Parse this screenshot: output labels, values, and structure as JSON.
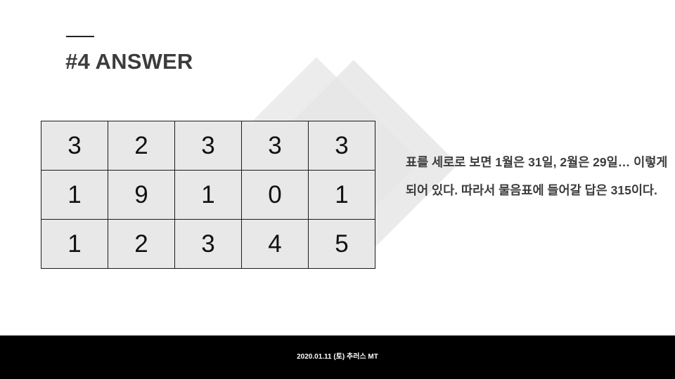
{
  "slide": {
    "title": "#4 ANSWER",
    "grid": [
      [
        "3",
        "2",
        "3",
        "3",
        "3"
      ],
      [
        "1",
        "9",
        "1",
        "0",
        "1"
      ],
      [
        "1",
        "2",
        "3",
        "4",
        "5"
      ]
    ],
    "explanation": "표를 세로로 보면 1월은 31일, 2월은 29일… 이렇게 되어 있다. 따라서 물음표에 들어갈 답은 315이다.",
    "footer": "2020.01.11 (토) 추러스 MT"
  },
  "colors": {
    "title": "#3c3c3c",
    "cell_fill": "#e8e8e8",
    "footer_bg": "#000000",
    "footer_text": "#ffffff"
  }
}
